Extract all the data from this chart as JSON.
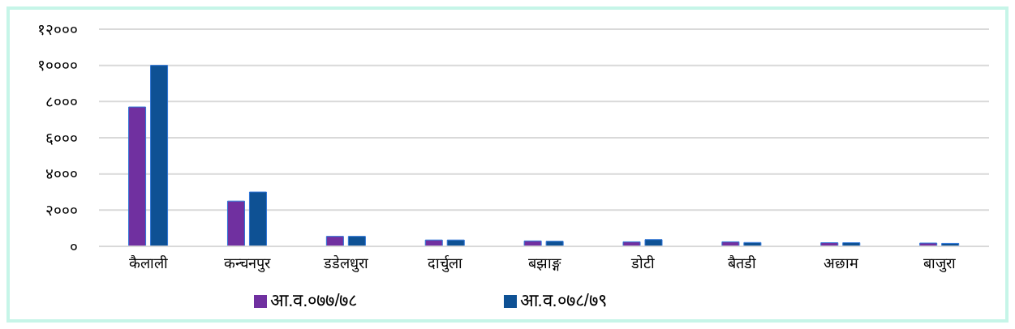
{
  "chart_data": {
    "type": "bar",
    "categories": [
      "कैलाली",
      "कन्चनपुर",
      "डडेलधुरा",
      "दार्चुला",
      "बझाङ्ग",
      "डोटी",
      "बैतडी",
      "अछाम",
      "बाजुरा"
    ],
    "series": [
      {
        "name": "आ.व.०७७/७८",
        "color": "#7030a0",
        "values": [
          7700,
          2500,
          550,
          350,
          300,
          250,
          250,
          200,
          180
        ]
      },
      {
        "name": "आ.व.०७८/७९",
        "color": "#0e5194",
        "values": [
          10000,
          3000,
          550,
          350,
          280,
          370,
          210,
          200,
          160
        ]
      }
    ],
    "ylim": [
      0,
      12000
    ],
    "yticks": [
      {
        "value": 0,
        "label": "०"
      },
      {
        "value": 2000,
        "label": "२०००"
      },
      {
        "value": 4000,
        "label": "४०००"
      },
      {
        "value": 6000,
        "label": "६०००"
      },
      {
        "value": 8000,
        "label": "८०००"
      },
      {
        "value": 10000,
        "label": "१००००"
      },
      {
        "value": 12000,
        "label": "१२०००"
      }
    ],
    "grid": "y",
    "legend": "bottom"
  }
}
